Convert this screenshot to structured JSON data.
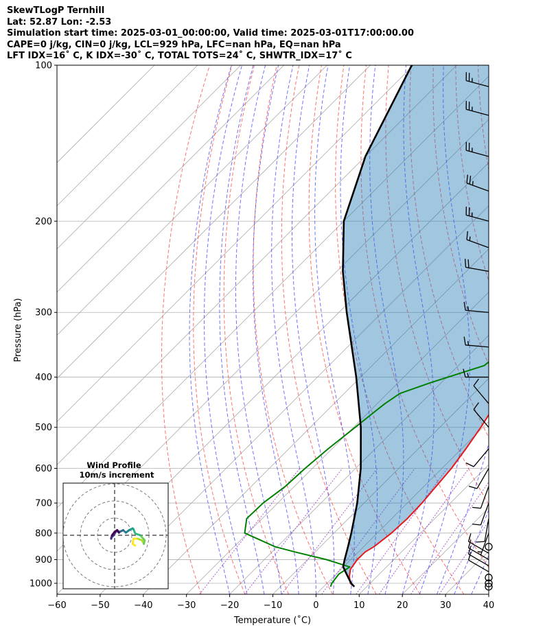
{
  "header": {
    "line1": "SkewTLogP Ternhill",
    "line2": "Lat: 52.87   Lon: -2.53",
    "line3": "Simulation start time: 2025-03-01_00:00:00, Valid time: 2025-03-01T17:00:00.00",
    "line4": "CAPE=0 j/kg, CIN=0 j/kg, LCL=929 hPa, LFC=nan hPa, EQ=nan hPa",
    "line5": "LFT IDX=16˚ C, K IDX=-30˚ C, TOTAL TOTS=24˚ C, SHWTR_IDX=17˚ C"
  },
  "chart_data": {
    "type": "line",
    "xlabel": "Temperature (˚C)",
    "ylabel": "Pressure (hPa)",
    "xlim": [
      -60,
      40
    ],
    "ylim": [
      1050,
      100
    ],
    "yscale": "log",
    "skew": true,
    "x_ticks": [
      "−60",
      "−50",
      "−40",
      "−30",
      "−20",
      "−10",
      "0",
      "10",
      "20",
      "30",
      "40"
    ],
    "y_ticks": [
      "1000",
      "900",
      "800",
      "700",
      "600",
      "500",
      "400",
      "300",
      "200",
      "100"
    ],
    "grid": true,
    "colors": {
      "temperature": "#e41a1c",
      "dewpoint": "#008000",
      "parcel": "#000000",
      "cin_shade": "#1f77b4",
      "isotherm": "#aaaaaa",
      "dry_adiabat": "#ff3333",
      "moist_adiabat": "#3333ff",
      "mixing_ratio": "#9933cc"
    },
    "series": [
      {
        "key": "temperature",
        "pressure": [
          1015,
          1000,
          970,
          940,
          900,
          870,
          850,
          800,
          750,
          700,
          650,
          600,
          550,
          500,
          450,
          400,
          370,
          350,
          330,
          300,
          280,
          260,
          250,
          230,
          210,
          200,
          190,
          175,
          160,
          150,
          140,
          130,
          120,
          110,
          100
        ],
        "values": [
          7.1,
          5.4,
          3.6,
          2.2,
          1.5,
          1.6,
          2.4,
          3.3,
          3.6,
          3.4,
          2.8,
          2.2,
          1.0,
          -0.5,
          -2.5,
          -5.2,
          -6.0,
          -7.0,
          -8.8,
          -11.5,
          -14.2,
          -15.6,
          -17.1,
          -20.0,
          -22.5,
          -24.2,
          -24.5,
          -21.1,
          -16.9,
          -12.8,
          -10.2,
          -8.4,
          -7.1,
          -6.2,
          -5.5
        ]
      },
      {
        "key": "dewpoint",
        "pressure": [
          1015,
          1000,
          960,
          930,
          900,
          870,
          850,
          800,
          750,
          700,
          650,
          600,
          550,
          500,
          470,
          450,
          430,
          410,
          380,
          350,
          320,
          300,
          280,
          260,
          240,
          220,
          200,
          190,
          180,
          175,
          160,
          150,
          140,
          130,
          120,
          110,
          100
        ],
        "values": [
          1.6,
          1.1,
          0.6,
          1.5,
          -5.6,
          -14.7,
          -20.5,
          -30.7,
          -33.6,
          -33.4,
          -32.1,
          -31.7,
          -30.9,
          -29.6,
          -28.8,
          -28.2,
          -27.1,
          -22.5,
          -14.0,
          -13.2,
          -14.2,
          -17.0,
          -22.8,
          -26.1,
          -29.5,
          -33.9,
          -39.0,
          -37.4,
          -35.9,
          -34.7,
          -38.5,
          -40.1,
          -37.0,
          -35.7,
          -33.9,
          -34.2,
          -35.2
        ]
      },
      {
        "key": "parcel",
        "pressure": [
          1015,
          1000,
          960,
          929,
          900,
          850,
          800,
          750,
          700,
          600,
          500,
          400,
          300,
          250,
          200,
          150,
          100
        ],
        "values": [
          7.1,
          5.6,
          2.4,
          -0.1,
          -1.4,
          -3.6,
          -6.0,
          -8.7,
          -11.6,
          -18.8,
          -28.3,
          -41.0,
          -58.2,
          -68.6,
          -80.0,
          -90.0,
          -100.4
        ]
      }
    ],
    "wind_barbs": {
      "label": "wind barbs at x = 40",
      "pressure": [
        1015,
        1000,
        975,
        950,
        925,
        900,
        875,
        850,
        800,
        750,
        700,
        650,
        600,
        550,
        500,
        450,
        400,
        350,
        300,
        250,
        225,
        200,
        175,
        150,
        125,
        110
      ],
      "speed_kt": [
        0,
        0,
        0,
        10,
        10,
        10,
        10,
        0,
        5,
        10,
        10,
        10,
        10,
        10,
        10,
        10,
        15,
        15,
        15,
        20,
        15,
        25,
        25,
        25,
        25,
        25
      ],
      "direction_deg": [
        0,
        0,
        0,
        300,
        300,
        300,
        300,
        0,
        200,
        190,
        200,
        200,
        210,
        220,
        320,
        320,
        270,
        275,
        275,
        280,
        290,
        285,
        290,
        285,
        285,
        285
      ]
    },
    "inset": {
      "title": "Wind Profile",
      "subtitle": "10m/s increment",
      "rings_ms": [
        10,
        20,
        30
      ],
      "u": [
        12.0,
        10.5,
        11.0,
        13.5,
        16.0,
        17.0,
        17.5,
        15.0,
        12.0,
        11.0,
        10.5,
        8.5,
        6.5,
        5.0,
        3.0,
        1.0,
        -0.5,
        -2.0,
        -2.0,
        -1.5,
        0.0,
        1.5,
        2.5
      ],
      "v": [
        -6.0,
        -5.0,
        -2.0,
        -2.0,
        -3.0,
        -5.0,
        -3.0,
        0.0,
        1.0,
        3.5,
        4.0,
        3.0,
        1.5,
        3.0,
        2.0,
        2.5,
        0.0,
        -1.5,
        -2.0,
        0.0,
        2.0,
        3.0,
        1.5
      ]
    }
  }
}
